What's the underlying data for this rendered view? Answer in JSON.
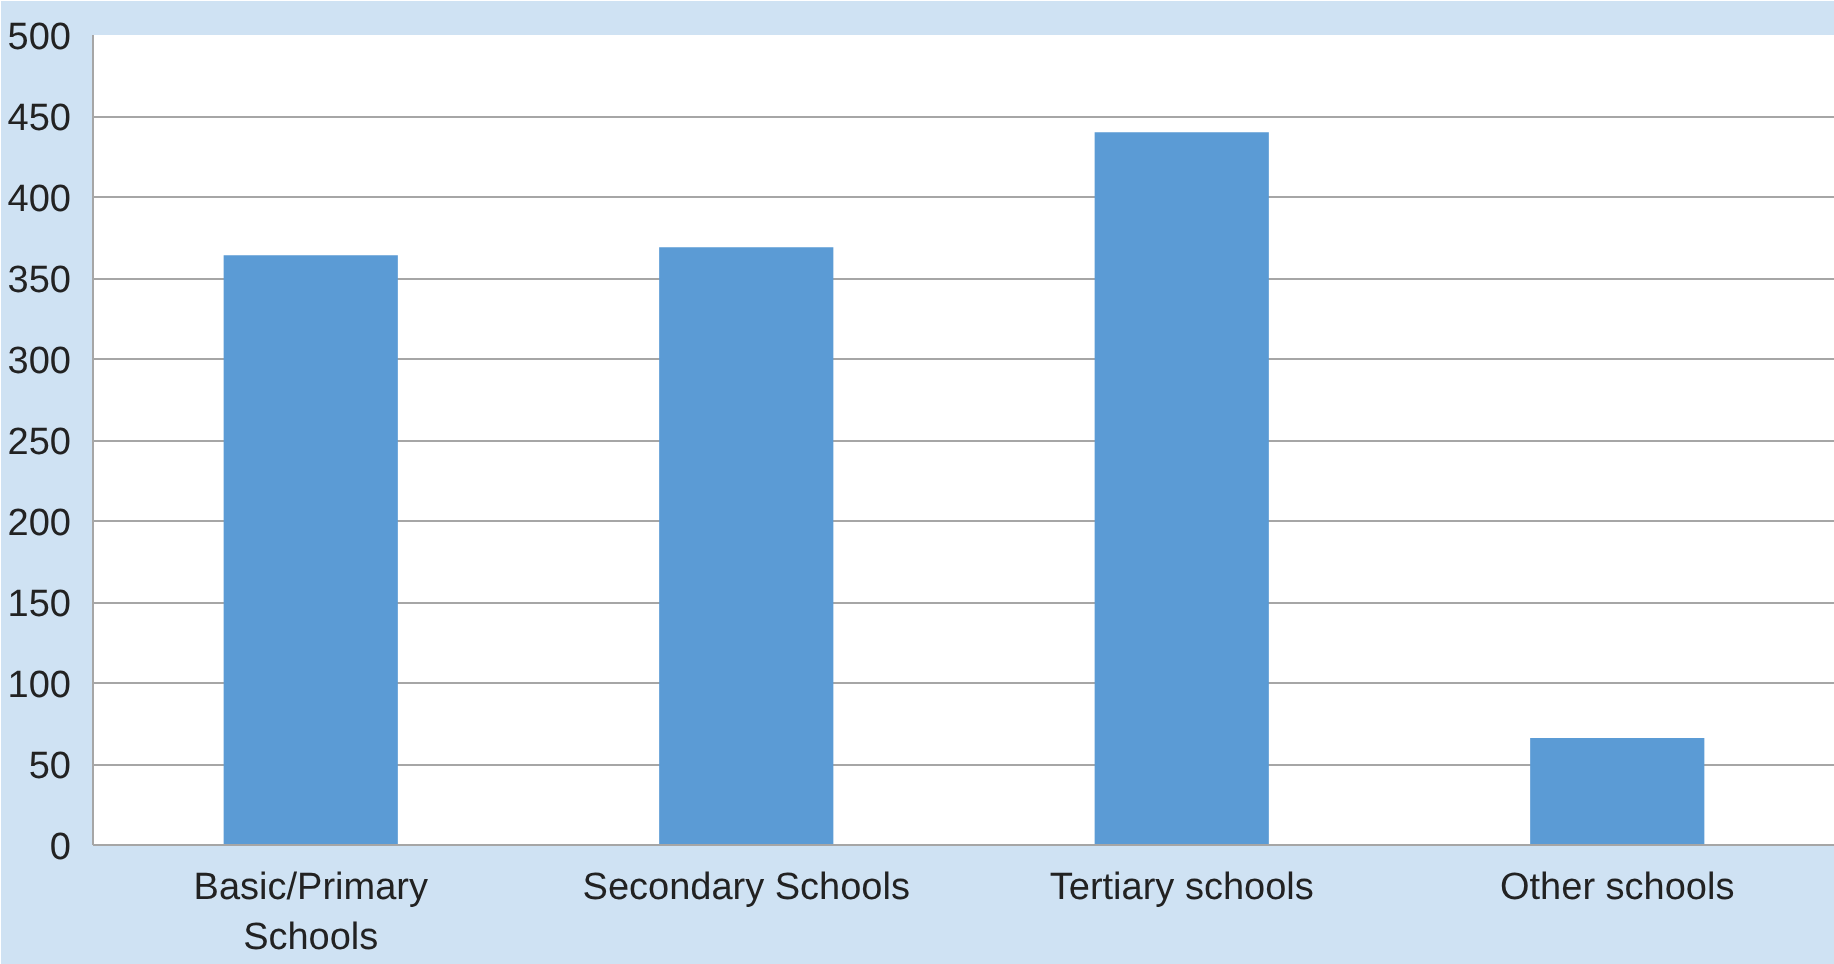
{
  "chart_data": {
    "type": "bar",
    "categories": [
      "Basic/Primary Schools",
      "Secondary Schools",
      "Tertiary schools",
      "Other schools"
    ],
    "values": [
      364,
      369,
      440,
      66
    ],
    "color": "#5b9bd5",
    "ylim": [
      0,
      500
    ],
    "yticks": [
      0,
      50,
      100,
      150,
      200,
      250,
      300,
      350,
      400,
      450,
      500
    ],
    "grid": "y"
  }
}
